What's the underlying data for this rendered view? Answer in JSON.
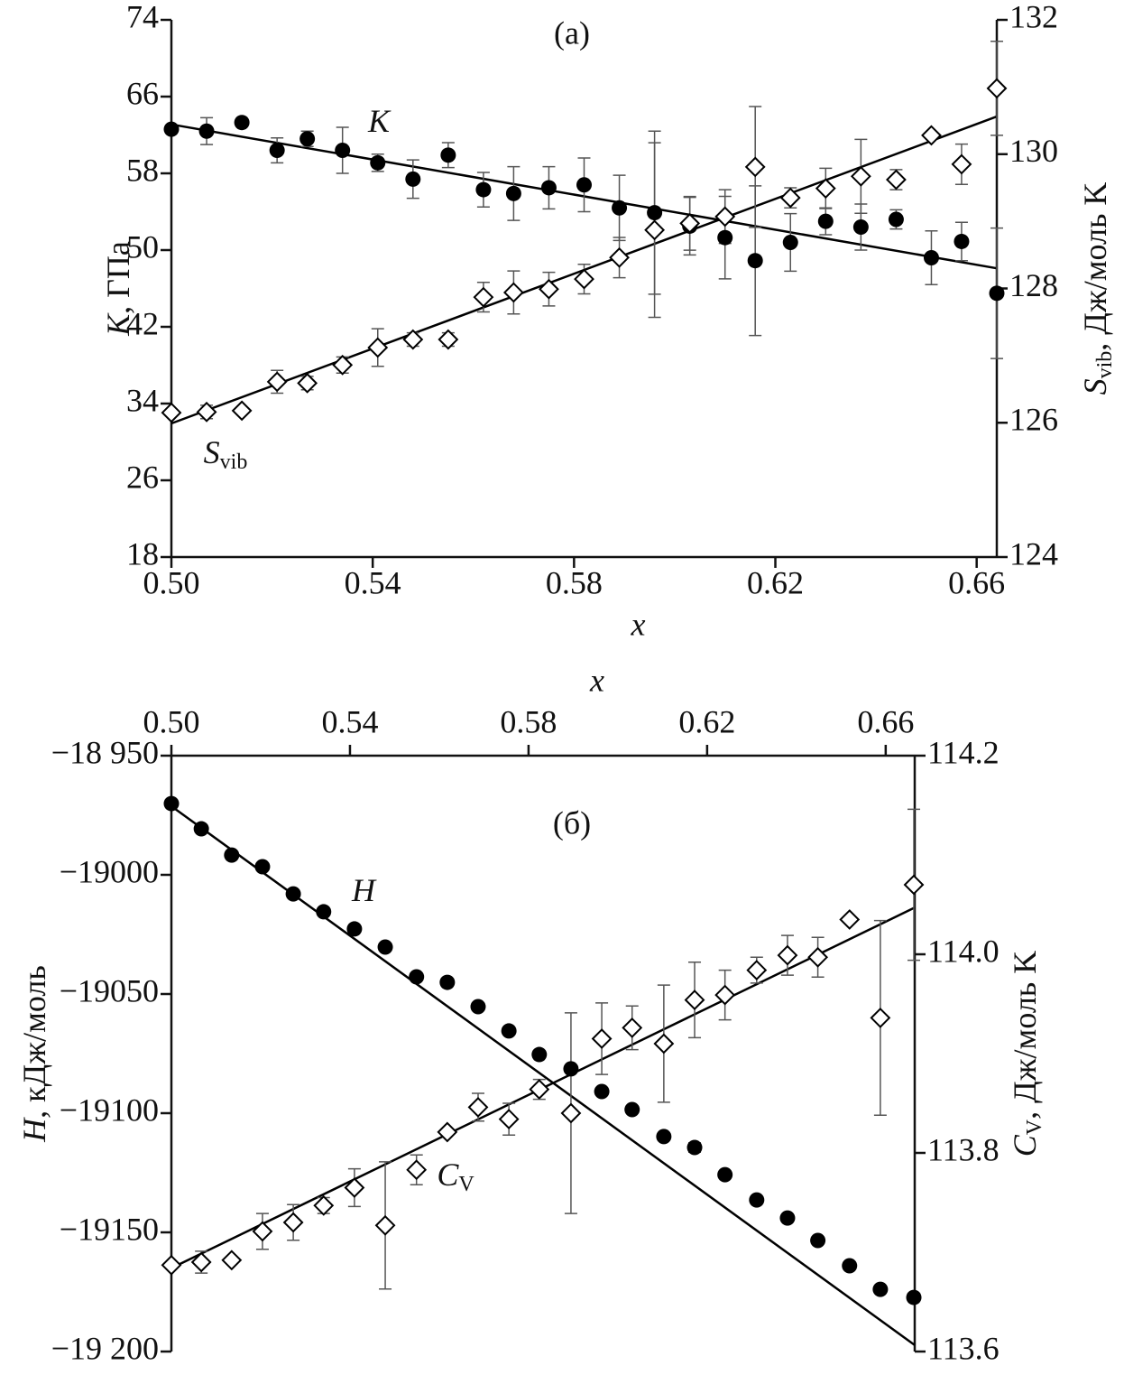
{
  "chart_data": [
    {
      "type": "scatter",
      "title": "(a)",
      "xlabel": "x",
      "ylabel": {
        "symbol": "K",
        "text": ", ГПа"
      },
      "y2label": {
        "symbol": "S",
        "subscript": "vib",
        "text": ", Дж/моль K"
      },
      "xlim": [
        0.5,
        0.664
      ],
      "xticks": [
        {
          "value": 0.5,
          "label": "0.50"
        },
        {
          "value": 0.54,
          "label": "0.54"
        },
        {
          "value": 0.58,
          "label": "0.58"
        },
        {
          "value": 0.62,
          "label": "0.62"
        },
        {
          "value": 0.66,
          "label": "0.66"
        }
      ],
      "ylim": [
        18,
        74
      ],
      "yticks": [
        18,
        26,
        34,
        42,
        50,
        58,
        66,
        74
      ],
      "y2lim": [
        124,
        132
      ],
      "y2ticks": [
        124,
        126,
        128,
        130,
        132
      ],
      "xaxis_position": "bottom",
      "x": [
        0.5,
        0.507,
        0.514,
        0.521,
        0.527,
        0.534,
        0.541,
        0.548,
        0.555,
        0.562,
        0.568,
        0.575,
        0.582,
        0.589,
        0.596,
        0.603,
        0.61,
        0.616,
        0.623,
        0.63,
        0.637,
        0.644,
        0.651,
        0.657,
        0.664
      ],
      "series": [
        {
          "symbol": "K",
          "marker": "circle",
          "color": "#000000",
          "values": [
            62.6,
            62.4,
            63.3,
            60.4,
            61.6,
            60.4,
            59.1,
            57.4,
            59.9,
            56.3,
            55.9,
            56.5,
            56.8,
            54.4,
            53.9,
            52.5,
            51.3,
            48.9,
            50.8,
            53.0,
            52.4,
            53.2,
            49.2,
            50.9,
            45.5
          ],
          "errors": [
            0,
            1.4,
            0,
            1.3,
            0.8,
            2.4,
            0.9,
            2.0,
            1.3,
            1.8,
            2.8,
            2.2,
            2.8,
            3.4,
            8.5,
            3.0,
            4.3,
            7.8,
            3.0,
            1.4,
            2.4,
            1.0,
            2.8,
            2.0,
            6.8
          ],
          "fit": {
            "x": [
              0.5,
              0.664
            ],
            "values": [
              63.1,
              48.1
            ]
          }
        },
        {
          "symbol": "S",
          "subscript": "vib",
          "marker": "diamond",
          "color": "#000000",
          "axis": "y2",
          "values": [
            126.15,
            126.16,
            126.18,
            126.61,
            126.59,
            126.86,
            127.12,
            127.24,
            127.24,
            127.87,
            127.94,
            127.99,
            128.14,
            128.46,
            128.87,
            128.97,
            129.07,
            129.81,
            129.35,
            129.49,
            129.67,
            129.62,
            130.28,
            129.85,
            130.98
          ],
          "errors": [
            0,
            0.1,
            0,
            0.17,
            0.1,
            0.12,
            0.28,
            0.1,
            0.1,
            0.22,
            0.32,
            0.25,
            0.22,
            0.3,
            1.3,
            0.4,
            0.4,
            0.9,
            0.15,
            0.3,
            0.55,
            0.15,
            0,
            0.3,
            0.7
          ],
          "fit": {
            "x": [
              0.5,
              0.664
            ],
            "values": [
              125.99,
              130.56
            ]
          }
        }
      ]
    },
    {
      "type": "scatter",
      "title": "(б)",
      "xlabel": "x",
      "ylabel": {
        "symbol": "H",
        "text": ", кДж/моль"
      },
      "y2label": {
        "symbol": "C",
        "subscript": "V",
        "text": ", Дж/моль K"
      },
      "xlim": [
        0.5,
        0.6665
      ],
      "xticks": [
        {
          "value": 0.5,
          "label": "0.50"
        },
        {
          "value": 0.54,
          "label": "0.54"
        },
        {
          "value": 0.58,
          "label": "0.58"
        },
        {
          "value": 0.62,
          "label": "0.62"
        },
        {
          "value": 0.66,
          "label": "0.66"
        }
      ],
      "ylim": [
        -19200,
        -18950
      ],
      "yticks": [
        {
          "value": -19200,
          "label": "−19 200"
        },
        {
          "value": -19150,
          "label": "−19150"
        },
        {
          "value": -19100,
          "label": "−19100"
        },
        {
          "value": -19050,
          "label": "−19050"
        },
        {
          "value": -19000,
          "label": "−19000"
        },
        {
          "value": -18950,
          "label": "−18 950"
        }
      ],
      "y2lim": [
        113.6,
        114.2
      ],
      "y2ticks": [
        113.6,
        113.8,
        {
          "value": 114.0,
          "label": "114.0"
        },
        114.2
      ],
      "xaxis_position": "top",
      "x": [
        0.5,
        0.5067,
        0.5135,
        0.5204,
        0.5273,
        0.5341,
        0.541,
        0.5479,
        0.5549,
        0.5618,
        0.5687,
        0.5756,
        0.5824,
        0.5895,
        0.5964,
        0.6032,
        0.6103,
        0.6172,
        0.624,
        0.6311,
        0.638,
        0.6448,
        0.6519,
        0.6588,
        0.6663
      ],
      "series": [
        {
          "symbol": "H",
          "marker": "circle",
          "color": "#000000",
          "values": [
            -18970.1,
            -18980.7,
            -18991.7,
            -18996.6,
            -19008.0,
            -19015.5,
            -19022.7,
            -19030.3,
            -19042.8,
            -19045.1,
            -19055.3,
            -19065.5,
            -19075.4,
            -19081.4,
            -19090.9,
            -19098.5,
            -19109.8,
            -19114.4,
            -19125.8,
            -19136.4,
            -19144.0,
            -19153.4,
            -19164.0,
            -19173.9,
            -19177.3
          ],
          "errors": [
            1,
            1.5,
            1,
            1.5,
            0.5,
            1.5,
            1,
            1,
            1,
            1.5,
            1,
            1,
            1,
            1,
            1,
            1,
            1.5,
            2,
            1,
            1,
            1,
            1,
            1.5,
            1,
            1
          ],
          "fit": {
            "x": [
              0.5,
              0.6665
            ],
            "values": [
              -18971.2,
              -19197.3
            ]
          }
        },
        {
          "symbol": "C",
          "subscript": "V",
          "marker": "diamond",
          "color": "#000000",
          "axis": "y2",
          "values": [
            113.687,
            113.69,
            113.692,
            113.721,
            113.73,
            113.747,
            113.765,
            113.727,
            113.783,
            113.821,
            113.846,
            113.834,
            113.864,
            113.84,
            113.915,
            113.926,
            113.91,
            113.954,
            113.959,
            113.984,
            113.999,
            113.997,
            114.035,
            113.936,
            114.07
          ],
          "errors": [
            0,
            0.011,
            0,
            0.018,
            0.018,
            0.008,
            0.019,
            0.064,
            0.015,
            0,
            0.014,
            0.016,
            0.01,
            0.101,
            0.036,
            0.022,
            0.059,
            0.038,
            0.025,
            0.013,
            0.02,
            0.02,
            0,
            0.098,
            0.076
          ],
          "fit": {
            "x": [
              0.5,
              0.6665
            ],
            "values": [
              113.684,
              114.047
            ]
          }
        }
      ]
    }
  ]
}
